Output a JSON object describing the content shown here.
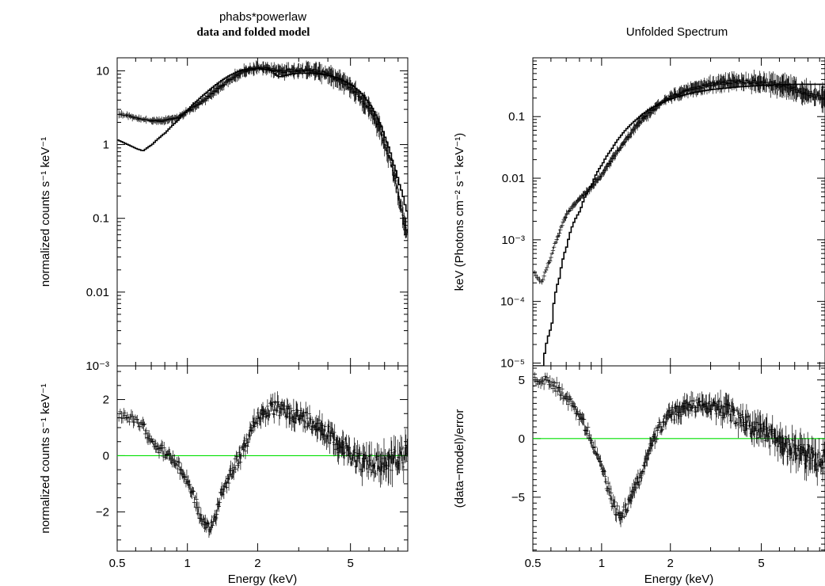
{
  "chart_data": [
    {
      "panel": "left",
      "title": "phabs*powerlaw",
      "subtitle": "data and folded model",
      "type": "line",
      "xlabel": "Energy (keV)",
      "xscale": "log",
      "xlim": [
        0.5,
        8.8
      ],
      "xticks": [
        {
          "v": 0.5,
          "label": "0.5"
        },
        {
          "v": 1,
          "label": "1"
        },
        {
          "v": 2,
          "label": "2"
        },
        {
          "v": 5,
          "label": "5"
        }
      ],
      "top": {
        "ylabel": "normalized counts s⁻¹ keV⁻¹",
        "yscale": "log",
        "ylim": [
          0.001,
          15
        ],
        "yticks": [
          {
            "v": 10,
            "label": "10"
          },
          {
            "v": 1,
            "label": "1"
          },
          {
            "v": 0.1,
            "label": "0.1"
          },
          {
            "v": 0.01,
            "label": "0.01"
          },
          {
            "v": 0.001,
            "label": "10⁻³"
          }
        ],
        "series": [
          {
            "kind": "model",
            "values": [
              [
                0.5,
                1.15
              ],
              [
                0.55,
                1.0
              ],
              [
                0.6,
                0.88
              ],
              [
                0.64,
                0.82
              ],
              [
                0.7,
                1.0
              ],
              [
                0.8,
                1.45
              ],
              [
                0.9,
                2.1
              ],
              [
                1.0,
                3.0
              ],
              [
                1.1,
                4.0
              ],
              [
                1.2,
                5.1
              ],
              [
                1.3,
                6.3
              ],
              [
                1.4,
                7.5
              ],
              [
                1.5,
                8.6
              ],
              [
                1.6,
                9.5
              ],
              [
                1.7,
                10.2
              ],
              [
                1.8,
                10.6
              ],
              [
                2.0,
                10.7
              ],
              [
                2.2,
                10.3
              ],
              [
                2.3,
                9.9
              ],
              [
                2.35,
                8.9
              ],
              [
                2.45,
                8.3
              ],
              [
                2.6,
                8.6
              ],
              [
                2.8,
                9.1
              ],
              [
                3.0,
                9.3
              ],
              [
                3.5,
                9.2
              ],
              [
                4.0,
                8.7
              ],
              [
                4.5,
                7.7
              ],
              [
                5.0,
                6.5
              ],
              [
                5.5,
                5.0
              ],
              [
                6.0,
                3.5
              ],
              [
                6.5,
                2.2
              ],
              [
                7.0,
                1.2
              ],
              [
                7.5,
                0.6
              ],
              [
                8.0,
                0.3
              ],
              [
                8.5,
                0.15
              ],
              [
                8.8,
                0.1
              ]
            ]
          },
          {
            "kind": "data",
            "values": [
              [
                0.5,
                2.6
              ],
              [
                0.55,
                2.5
              ],
              [
                0.6,
                2.3
              ],
              [
                0.65,
                2.2
              ],
              [
                0.7,
                2.1
              ],
              [
                0.75,
                2.1
              ],
              [
                0.8,
                2.1
              ],
              [
                0.85,
                2.2
              ],
              [
                0.9,
                2.3
              ],
              [
                0.95,
                2.5
              ],
              [
                1.0,
                2.8
              ],
              [
                1.1,
                3.4
              ],
              [
                1.2,
                4.2
              ],
              [
                1.3,
                5.2
              ],
              [
                1.4,
                6.2
              ],
              [
                1.5,
                7.3
              ],
              [
                1.6,
                8.4
              ],
              [
                1.7,
                9.4
              ],
              [
                1.8,
                10.3
              ],
              [
                2.0,
                10.9
              ],
              [
                2.2,
                10.6
              ],
              [
                2.4,
                10.0
              ],
              [
                2.6,
                9.9
              ],
              [
                2.8,
                10.1
              ],
              [
                3.0,
                10.2
              ],
              [
                3.5,
                10.0
              ],
              [
                4.0,
                9.0
              ],
              [
                4.5,
                7.6
              ],
              [
                5.0,
                6.0
              ],
              [
                5.5,
                4.4
              ],
              [
                6.0,
                3.0
              ],
              [
                6.5,
                1.9
              ],
              [
                7.0,
                1.0
              ],
              [
                7.5,
                0.5
              ],
              [
                8.0,
                0.2
              ],
              [
                8.5,
                0.08
              ],
              [
                8.8,
                0.06
              ]
            ]
          }
        ]
      },
      "bottom": {
        "ylabel": "normalized counts s⁻¹ keV⁻¹",
        "yscale": "linear",
        "ylim": [
          -3.4,
          3.2
        ],
        "yticks": [
          {
            "v": 2,
            "label": "2"
          },
          {
            "v": 0,
            "label": "0"
          },
          {
            "v": -2,
            "label": "−2"
          }
        ],
        "zero_line_color": "#00e000",
        "series": [
          {
            "kind": "residual",
            "values": [
              [
                0.5,
                1.5
              ],
              [
                0.55,
                1.4
              ],
              [
                0.6,
                1.2
              ],
              [
                0.65,
                1.0
              ],
              [
                0.7,
                0.6
              ],
              [
                0.75,
                0.3
              ],
              [
                0.8,
                0.1
              ],
              [
                0.85,
                -0.1
              ],
              [
                0.9,
                -0.3
              ],
              [
                0.95,
                -0.6
              ],
              [
                1.0,
                -0.9
              ],
              [
                1.05,
                -1.3
              ],
              [
                1.1,
                -1.8
              ],
              [
                1.15,
                -2.3
              ],
              [
                1.2,
                -2.6
              ],
              [
                1.25,
                -2.6
              ],
              [
                1.3,
                -2.3
              ],
              [
                1.35,
                -1.8
              ],
              [
                1.4,
                -1.3
              ],
              [
                1.5,
                -0.8
              ],
              [
                1.6,
                -0.3
              ],
              [
                1.7,
                0.0
              ],
              [
                1.8,
                0.5
              ],
              [
                1.9,
                1.0
              ],
              [
                2.0,
                1.4
              ],
              [
                2.2,
                1.6
              ],
              [
                2.4,
                1.7
              ],
              [
                2.6,
                1.6
              ],
              [
                2.8,
                1.5
              ],
              [
                3.0,
                1.4
              ],
              [
                3.5,
                1.2
              ],
              [
                4.0,
                0.8
              ],
              [
                4.5,
                0.4
              ],
              [
                5.0,
                0.1
              ],
              [
                5.5,
                -0.2
              ],
              [
                6.0,
                -0.3
              ],
              [
                6.5,
                -0.3
              ],
              [
                7.0,
                -0.25
              ],
              [
                7.5,
                -0.15
              ],
              [
                8.0,
                -0.1
              ],
              [
                8.5,
                -0.05
              ],
              [
                8.8,
                0.0
              ]
            ]
          }
        ]
      }
    },
    {
      "panel": "right",
      "title": "Unfolded Spectrum",
      "type": "line",
      "xlabel": "Energy (keV)",
      "xscale": "log",
      "xlim": [
        0.5,
        9.5
      ],
      "xticks": [
        {
          "v": 0.5,
          "label": "0.5"
        },
        {
          "v": 1,
          "label": "1"
        },
        {
          "v": 2,
          "label": "2"
        },
        {
          "v": 5,
          "label": "5"
        }
      ],
      "top": {
        "ylabel": "keV (Photons cm⁻² s⁻¹ keV⁻¹)",
        "yscale": "log",
        "ylim": [
          9e-06,
          0.9
        ],
        "yticks": [
          {
            "v": 0.1,
            "label": "0.1"
          },
          {
            "v": 0.01,
            "label": "0.01"
          },
          {
            "v": 0.001,
            "label": "10⁻³"
          },
          {
            "v": 0.0001,
            "label": "10⁻⁴"
          },
          {
            "v": 1e-05,
            "label": "10⁻⁵"
          }
        ],
        "series": [
          {
            "kind": "model",
            "values": [
              [
                0.55,
                9e-06
              ],
              [
                0.6,
                4e-05
              ],
              [
                0.65,
                0.00025
              ],
              [
                0.7,
                0.0008
              ],
              [
                0.8,
                0.003
              ],
              [
                0.9,
                0.008
              ],
              [
                1.0,
                0.017
              ],
              [
                1.1,
                0.03
              ],
              [
                1.2,
                0.048
              ],
              [
                1.3,
                0.068
              ],
              [
                1.4,
                0.088
              ],
              [
                1.6,
                0.13
              ],
              [
                1.8,
                0.165
              ],
              [
                2.0,
                0.195
              ],
              [
                2.5,
                0.245
              ],
              [
                3.0,
                0.275
              ],
              [
                4.0,
                0.305
              ],
              [
                5.0,
                0.32
              ],
              [
                6.0,
                0.33
              ],
              [
                7.0,
                0.335
              ],
              [
                9.5,
                0.335
              ]
            ]
          },
          {
            "kind": "data",
            "values": [
              [
                0.5,
                0.0003
              ],
              [
                0.55,
                0.0002
              ],
              [
                0.6,
                0.0005
              ],
              [
                0.65,
                0.0012
              ],
              [
                0.7,
                0.0025
              ],
              [
                0.8,
                0.0045
              ],
              [
                0.9,
                0.007
              ],
              [
                1.0,
                0.011
              ],
              [
                1.1,
                0.019
              ],
              [
                1.2,
                0.03
              ],
              [
                1.3,
                0.045
              ],
              [
                1.4,
                0.065
              ],
              [
                1.6,
                0.11
              ],
              [
                1.8,
                0.16
              ],
              [
                2.0,
                0.21
              ],
              [
                2.5,
                0.28
              ],
              [
                3.0,
                0.33
              ],
              [
                3.5,
                0.36
              ],
              [
                4.0,
                0.37
              ],
              [
                5.0,
                0.36
              ],
              [
                6.0,
                0.32
              ],
              [
                7.0,
                0.28
              ],
              [
                8.0,
                0.24
              ],
              [
                9.5,
                0.2
              ]
            ]
          }
        ]
      },
      "bottom": {
        "ylabel": "(data−model)/error",
        "yscale": "linear",
        "ylim": [
          -9.6,
          6.2
        ],
        "yticks": [
          {
            "v": 5,
            "label": "5"
          },
          {
            "v": 0,
            "label": "0"
          },
          {
            "v": -5,
            "label": "−5"
          }
        ],
        "zero_line_color": "#00e000",
        "series": [
          {
            "kind": "residual",
            "values": [
              [
                0.5,
                4.8
              ],
              [
                0.55,
                5.0
              ],
              [
                0.6,
                4.8
              ],
              [
                0.65,
                4.2
              ],
              [
                0.7,
                3.5
              ],
              [
                0.75,
                2.8
              ],
              [
                0.8,
                2.0
              ],
              [
                0.85,
                1.0
              ],
              [
                0.9,
                0.0
              ],
              [
                0.95,
                -1.2
              ],
              [
                1.0,
                -2.5
              ],
              [
                1.05,
                -3.8
              ],
              [
                1.1,
                -5.0
              ],
              [
                1.15,
                -6.0
              ],
              [
                1.2,
                -6.5
              ],
              [
                1.25,
                -6.3
              ],
              [
                1.3,
                -5.6
              ],
              [
                1.4,
                -4.2
              ],
              [
                1.5,
                -2.8
              ],
              [
                1.6,
                -1.2
              ],
              [
                1.7,
                0.0
              ],
              [
                1.8,
                1.0
              ],
              [
                2.0,
                2.0
              ],
              [
                2.3,
                2.6
              ],
              [
                2.6,
                2.9
              ],
              [
                3.0,
                2.9
              ],
              [
                3.5,
                2.3
              ],
              [
                4.0,
                1.7
              ],
              [
                4.5,
                1.1
              ],
              [
                5.0,
                0.6
              ],
              [
                5.5,
                0.1
              ],
              [
                6.0,
                -0.4
              ],
              [
                7.0,
                -1.0
              ],
              [
                8.0,
                -1.5
              ],
              [
                9.5,
                -2.0
              ]
            ]
          }
        ]
      }
    }
  ]
}
